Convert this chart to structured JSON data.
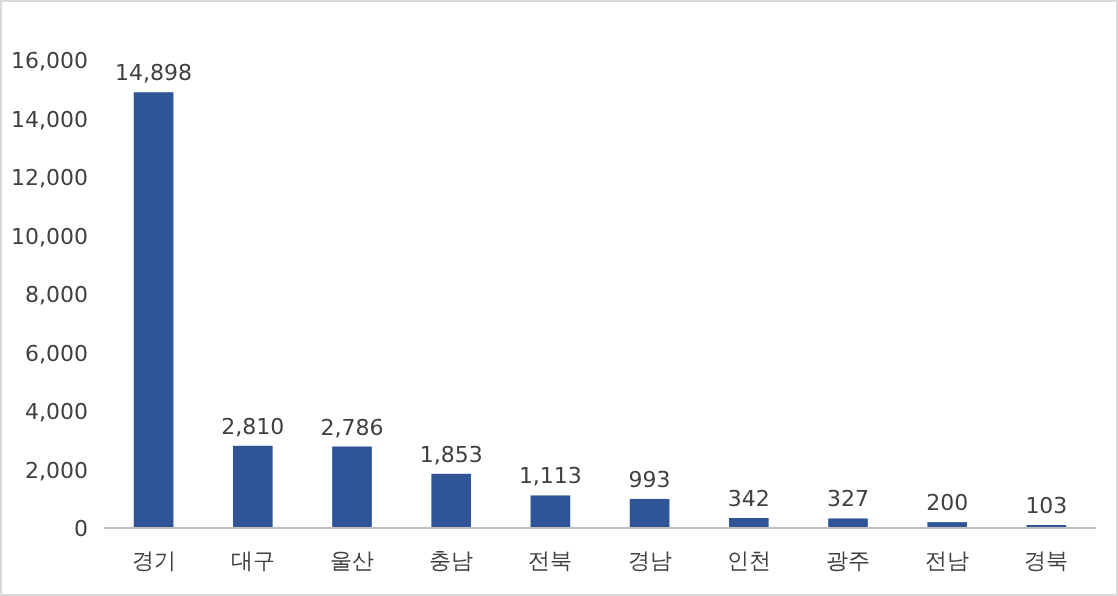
{
  "chart_data": {
    "type": "bar",
    "categories": [
      "경기",
      "대구",
      "울산",
      "충남",
      "전북",
      "경남",
      "인천",
      "광주",
      "전남",
      "경북"
    ],
    "values": [
      14898,
      2810,
      2786,
      1853,
      1113,
      993,
      342,
      327,
      200,
      103
    ],
    "color": "#2f5597",
    "data_labels": true,
    "value_labels": [
      "14,898",
      "2,810",
      "2,786",
      "1,853",
      "1,113",
      "993",
      "342",
      "327",
      "200",
      "103"
    ],
    "ylim": [
      0,
      16000
    ],
    "yticks": [
      {
        "value": 0,
        "label": "0"
      },
      {
        "value": 2000,
        "label": "2,000"
      },
      {
        "value": 4000,
        "label": "4,000"
      },
      {
        "value": 6000,
        "label": "6,000"
      },
      {
        "value": 8000,
        "label": "8,000"
      },
      {
        "value": 10000,
        "label": "10,000"
      },
      {
        "value": 12000,
        "label": "12,000"
      },
      {
        "value": 14000,
        "label": "14,000"
      },
      {
        "value": 16000,
        "label": "16,000"
      }
    ]
  }
}
